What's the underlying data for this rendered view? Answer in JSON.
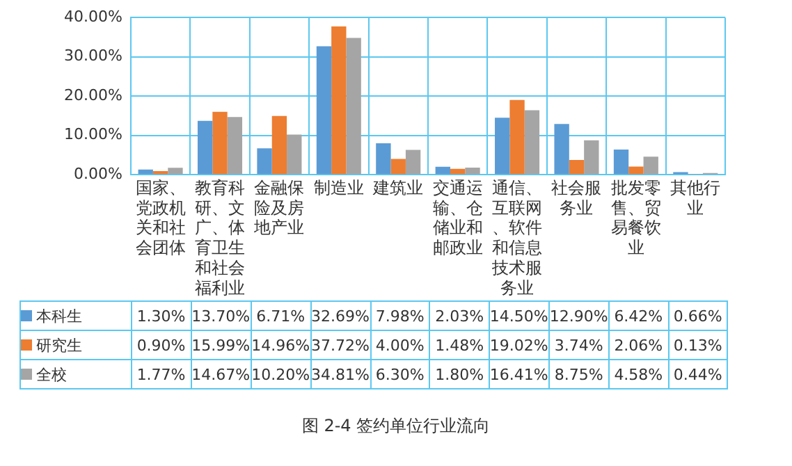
{
  "chart_data": {
    "type": "bar",
    "title": "图 2-4  签约单位行业流向",
    "categories": [
      "国家、党政机关和社会团体",
      "教育科研、文广、体育卫生和社会福利业",
      "金融保险及房地产业",
      "制造业",
      "建筑业",
      "交通运输、仓储业和邮政业",
      "通信、互联网、软件和信息技术服务业",
      "社会服务业",
      "批发零售、贸易餐饮业",
      "其他行业"
    ],
    "series": [
      {
        "name": "本科生",
        "color": "#5b9bd5",
        "values": [
          1.3,
          13.7,
          6.71,
          32.69,
          7.98,
          2.03,
          14.5,
          12.9,
          6.42,
          0.66
        ],
        "value_labels": [
          "1.30%",
          "13.70%",
          "6.71%",
          "32.69%",
          "7.98%",
          "2.03%",
          "14.50%",
          "12.90%",
          "6.42%",
          "0.66%"
        ]
      },
      {
        "name": "研究生",
        "color": "#ed7d31",
        "values": [
          0.9,
          15.99,
          14.96,
          37.72,
          4.0,
          1.48,
          19.02,
          3.74,
          2.06,
          0.13
        ],
        "value_labels": [
          "0.90%",
          "15.99%",
          "14.96%",
          "37.72%",
          "4.00%",
          "1.48%",
          "19.02%",
          "3.74%",
          "2.06%",
          "0.13%"
        ]
      },
      {
        "name": "全校",
        "color": "#a5a5a5",
        "values": [
          1.77,
          14.67,
          10.2,
          34.81,
          6.3,
          1.8,
          16.41,
          8.75,
          4.58,
          0.44
        ],
        "value_labels": [
          "1.77%",
          "14.67%",
          "10.20%",
          "34.81%",
          "6.30%",
          "1.80%",
          "16.41%",
          "8.75%",
          "4.58%",
          "0.44%"
        ]
      }
    ],
    "ylim": [
      0,
      40
    ],
    "yticks": [
      {
        "value": 0,
        "label": "0.00%"
      },
      {
        "value": 10,
        "label": "10.00%"
      },
      {
        "value": 20,
        "label": "20.00%"
      },
      {
        "value": 30,
        "label": "30.00%"
      },
      {
        "value": 40,
        "label": "40.00%"
      }
    ],
    "grid": "y",
    "legend": "bottom"
  }
}
